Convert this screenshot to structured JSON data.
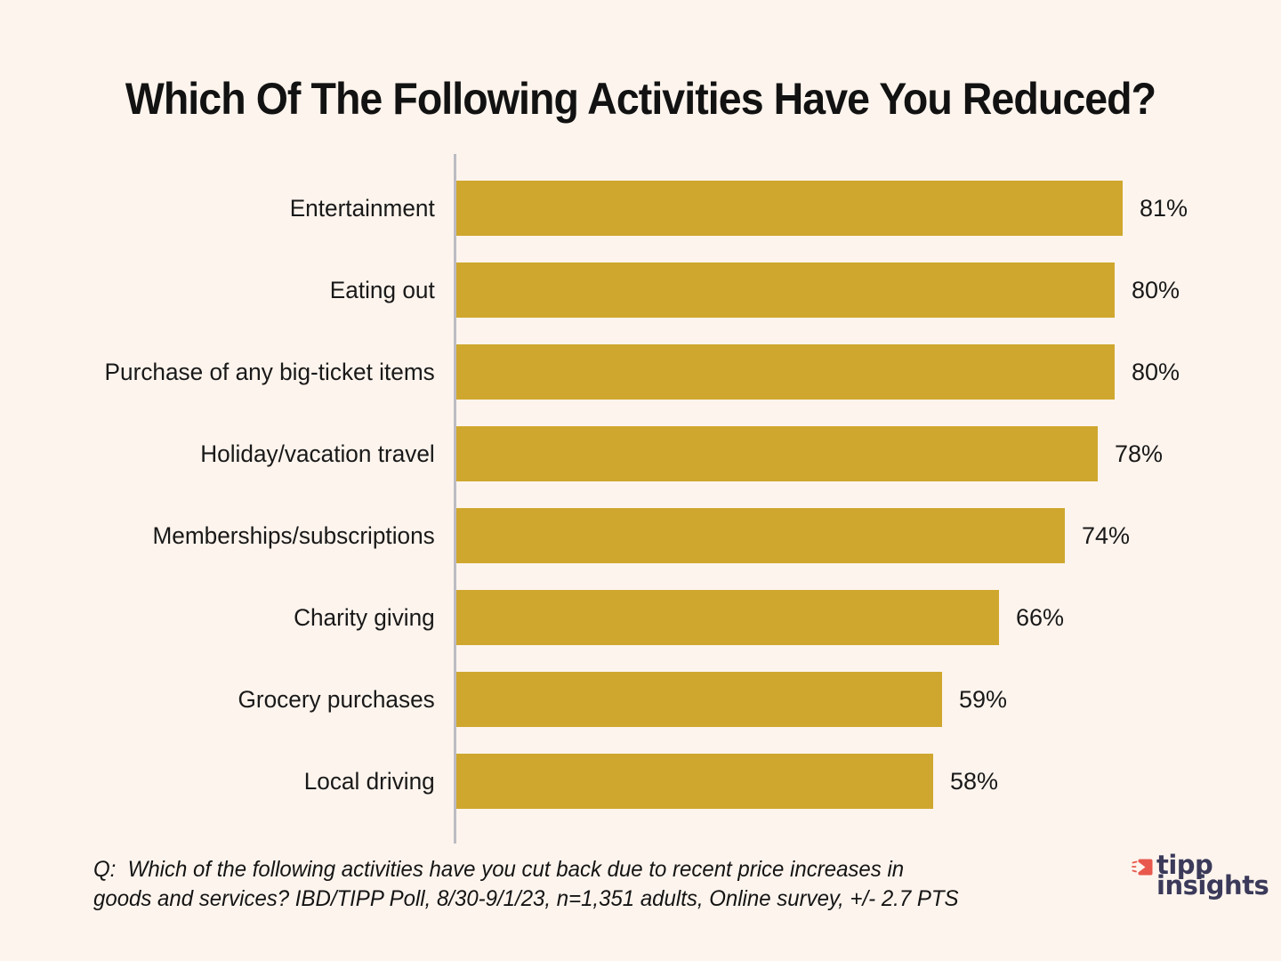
{
  "chart_data": {
    "type": "bar",
    "orientation": "horizontal",
    "title": "Which Of The Following Activities Have You Reduced?",
    "categories": [
      "Entertainment",
      "Eating out",
      "Purchase of any big-ticket items",
      "Holiday/vacation travel",
      "Memberships/subscriptions",
      "Charity giving",
      "Grocery purchases",
      "Local driving"
    ],
    "values": [
      81,
      80,
      80,
      78,
      74,
      66,
      59,
      58
    ],
    "value_suffix": "%",
    "xlabel": "",
    "ylabel": "",
    "xlim": [
      0,
      87
    ],
    "grid": false,
    "legend_position": "none",
    "bar_color": "#CFA72E"
  },
  "footer": {
    "line1": "Q:  Which of the following activities have you cut back due to recent price increases in",
    "line2": "goods and services? IBD/TIPP Poll, 8/30-9/1/23, n=1,351 adults, Online survey, +/- 2.7 PTS"
  },
  "logo": {
    "word1": "tipp",
    "word2": "insights"
  },
  "colors": {
    "background": "#FDF4ED",
    "bar": "#CFA72E",
    "axis_line": "#BCBCC4",
    "title_text": "#121212",
    "body_text": "#191919",
    "logo_navy": "#3B3A5A",
    "logo_coral": "#E8584C"
  }
}
